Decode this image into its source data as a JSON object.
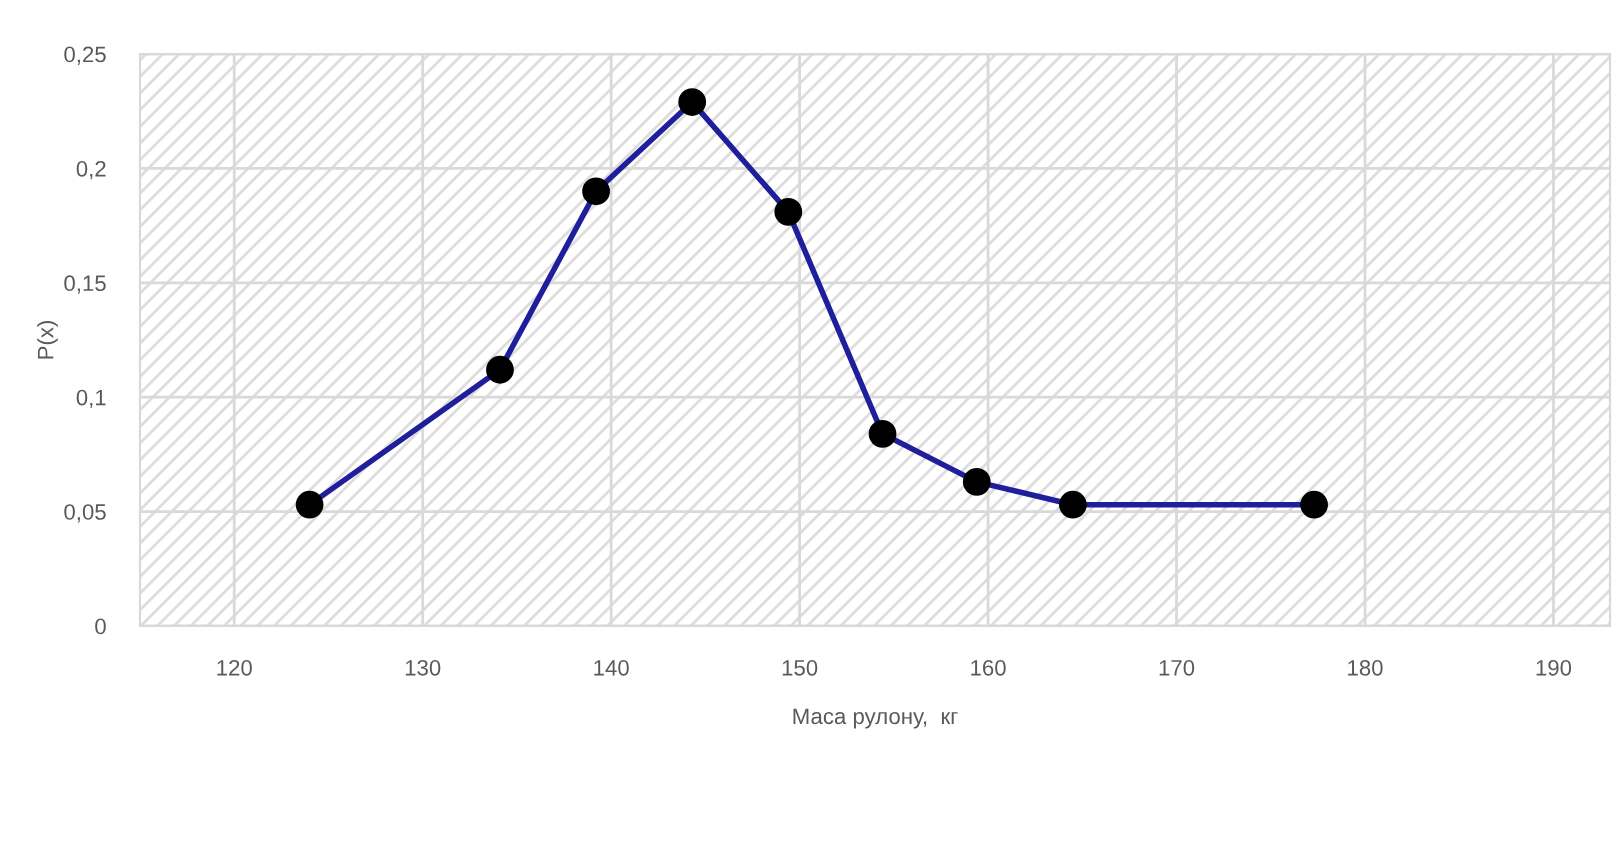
{
  "chart_data": {
    "type": "line",
    "xlabel": "Маса рулону,  кг",
    "ylabel": "P(x)",
    "x": [
      124,
      134.1,
      139.2,
      144.3,
      149.4,
      154.4,
      159.4,
      164.5,
      177.3
    ],
    "series": [
      {
        "color": "#1f1f9c",
        "values": [
          0.053,
          0.112,
          0.19,
          0.229,
          0.181,
          0.084,
          0.063,
          0.053,
          0.053
        ]
      }
    ],
    "marker": "circle",
    "line_style": "solid",
    "grid": true,
    "xlim": [
      115,
      193
    ],
    "xticks": [
      120,
      130,
      140,
      150,
      160,
      170,
      180,
      190
    ],
    "ylim": [
      0,
      0.25
    ],
    "yticks": [
      {
        "value": 0,
        "label": "0"
      },
      {
        "value": 0.05,
        "label": "0,05"
      },
      {
        "value": 0.1,
        "label": "0,1"
      },
      {
        "value": 0.15,
        "label": "0,15"
      },
      {
        "value": 0.2,
        "label": "0,2"
      },
      {
        "value": 0.25,
        "label": "0,25"
      }
    ]
  }
}
